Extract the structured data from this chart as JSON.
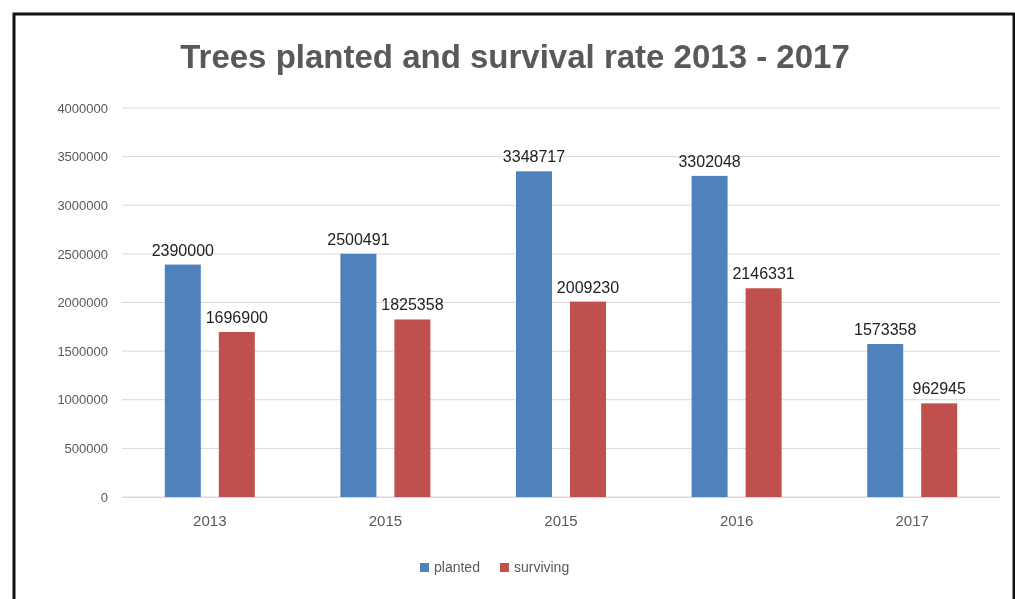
{
  "chart_data": {
    "type": "bar",
    "title": "Trees planted and survival rate 2013 - 2017",
    "categories": [
      "2013",
      "2015",
      "2015",
      "2016",
      "2017"
    ],
    "series": [
      {
        "name": "planted",
        "color": "#4f81bd",
        "values": [
          2390000,
          2500491,
          3348717,
          3302048,
          1573358
        ]
      },
      {
        "name": "surviving",
        "color": "#c0504d",
        "values": [
          1696900,
          1825358,
          2009230,
          2146331,
          962945
        ]
      }
    ],
    "ylim": [
      0,
      4000000
    ],
    "yticks": [
      0,
      500000,
      1000000,
      1500000,
      2000000,
      2500000,
      3000000,
      3500000,
      4000000
    ],
    "grid": "y",
    "legend": "bottom",
    "data_labels": true
  }
}
